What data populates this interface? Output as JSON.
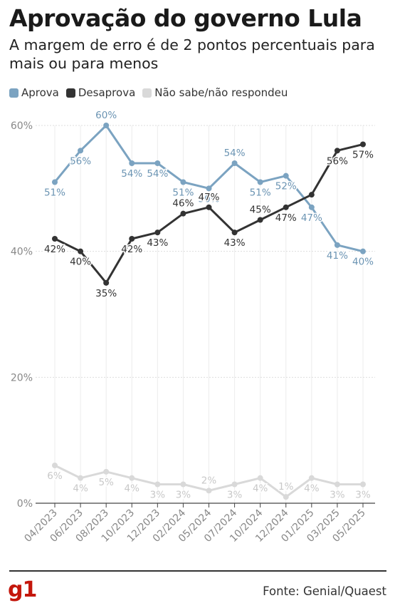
{
  "header": {
    "title": "Aprovação do governo Lula",
    "subtitle": "A margem de erro é de 2 pontos percentuais para mais ou para menos"
  },
  "legend": [
    {
      "label": "Aprova",
      "color": "#7ba3c1"
    },
    {
      "label": "Desaprova",
      "color": "#333333"
    },
    {
      "label": "Não sabe/não respondeu",
      "color": "#d9d9d9"
    }
  ],
  "footer": {
    "logo": "g1",
    "source": "Fonte: Genial/Quaest"
  },
  "chart_data": {
    "type": "line",
    "x": [
      "04/2023",
      "06/2023",
      "08/2023",
      "10/2023",
      "12/2023",
      "02/2024",
      "05/2024",
      "07/2024",
      "10/2024",
      "12/2024",
      "01/2025",
      "03/2025",
      "05/2025"
    ],
    "series": [
      {
        "name": "Aprova",
        "color": "#7ba3c1",
        "label_color": "#6b94b3",
        "values": [
          51,
          56,
          60,
          54,
          54,
          51,
          50,
          54,
          51,
          52,
          47,
          41,
          40
        ],
        "labels": [
          "51%",
          "56%",
          "60%",
          "54%",
          "54%",
          "51%",
          "50%",
          "54%",
          "51%",
          "52%",
          "47%",
          "41%",
          "40%"
        ]
      },
      {
        "name": "Desaprova",
        "color": "#333333",
        "label_color": "#333333",
        "values": [
          42,
          40,
          35,
          42,
          43,
          46,
          47,
          43,
          45,
          47,
          49,
          56,
          57
        ],
        "labels": [
          "42%",
          "40%",
          "35%",
          "42%",
          "43%",
          "46%",
          "47%",
          "43%",
          "45%",
          "47%",
          "",
          "56%",
          "57%"
        ]
      },
      {
        "name": "Não sabe/não respondeu",
        "color": "#d9d9d9",
        "label_color": "#c8c8c8",
        "values": [
          6,
          4,
          5,
          4,
          3,
          3,
          2,
          3,
          4,
          1,
          4,
          3,
          3
        ],
        "labels": [
          "6%",
          "4%",
          "5%",
          "4%",
          "3%",
          "3%",
          "2%",
          "3%",
          "4%",
          "1%",
          "4%",
          "3%",
          "3%"
        ]
      }
    ],
    "yticks": [
      "0%",
      "20%",
      "40%",
      "60%"
    ],
    "ylim": [
      0,
      60
    ],
    "grid": true
  }
}
